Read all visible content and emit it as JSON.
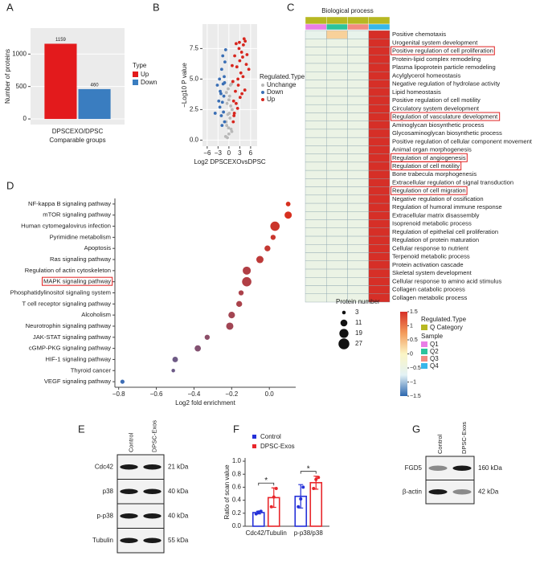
{
  "chart_data": [
    {
      "type": "bar",
      "panel": "A",
      "categories": [
        "DPSCEXO/DPSC"
      ],
      "series": [
        {
          "name": "Up",
          "color": "#e31a1c",
          "values": [
            1159
          ]
        },
        {
          "name": "Down",
          "color": "#3a7dc0",
          "values": [
            460
          ]
        }
      ],
      "x_label": "Comparable groups",
      "y_label": "Number of proteins",
      "legend_title": "Type",
      "ylim": [
        -86,
        1400
      ],
      "yticks": [
        0,
        500,
        1000
      ],
      "grid": true
    },
    {
      "type": "scatter",
      "panel": "B",
      "x_label": "Log2 DPSCEXOvsDPSC",
      "y_label": "−Log10 P value",
      "legend_title": "Regulated.Type",
      "xlim": [
        -7.3,
        7.8
      ],
      "xticks": [
        {
          "value": -6,
          "label": "−6"
        },
        {
          "value": -3,
          "label": "−3"
        },
        0,
        3,
        6
      ],
      "ylim": [
        -0.5,
        9.5
      ],
      "yticks": [
        {
          "value": 0,
          "label": "0.0"
        },
        {
          "value": 2.5,
          "label": "2.5"
        },
        {
          "value": 5,
          "label": "5.0"
        },
        {
          "value": 7.5,
          "label": "7.5"
        }
      ],
      "grid": true,
      "series": [
        {
          "name": "Unchange",
          "color": "#b8b8b8",
          "x": [
            -0.9,
            -0.6,
            -0.3,
            0,
            0.3,
            0.6,
            0.9,
            -0.5,
            -0.2,
            0.2,
            0.5,
            -0.8,
            0.8,
            -0.4,
            0.4,
            0,
            -0.1,
            0.1,
            -0.7,
            0.7
          ],
          "values": [
            0.3,
            1.2,
            2.1,
            0.5,
            1.8,
            0.9,
            2.5,
            3.0,
            4.2,
            3.6,
            2.8,
            1.5,
            0.7,
            0.2,
            4.5,
            3.3,
            1.0,
            2.2,
            3.9,
            4.6
          ]
        },
        {
          "name": "Down",
          "color": "#3a6fb5",
          "x": [
            -1.2,
            -1.5,
            -1.8,
            -2.1,
            -2.4,
            -2.8,
            -1.3,
            -1.6,
            -2.0,
            -2.5,
            -1.1,
            -1.9,
            -3.2,
            -1.4,
            -2.2,
            -0.9,
            -1.7,
            -2.6,
            -1.2,
            -3.8
          ],
          "values": [
            1.5,
            2.3,
            3.1,
            2.0,
            4.0,
            3.2,
            5.2,
            4.6,
            5.8,
            2.7,
            6.4,
            1.2,
            4.5,
            3.6,
            3.8,
            7.4,
            6.9,
            5.0,
            4.7,
            2.2
          ]
        },
        {
          "name": "Up",
          "color": "#d7261e",
          "x": [
            1.2,
            1.5,
            2.0,
            2.5,
            3.0,
            3.5,
            4.0,
            4.5,
            5.0,
            1.8,
            2.2,
            2.8,
            3.3,
            3.8,
            4.2,
            1.3,
            1.6,
            2.6,
            3.6,
            4.8,
            5.5,
            2.4,
            3.1,
            1.1,
            0.9,
            2.0,
            3.9,
            4.4,
            1.4,
            2.9
          ],
          "values": [
            1.5,
            2.2,
            3.0,
            5.0,
            6.5,
            7.2,
            7.8,
            8.1,
            7.0,
            4.0,
            6.0,
            7.5,
            5.5,
            6.8,
            8.3,
            3.2,
            6.9,
            4.5,
            3.8,
            6.2,
            5.8,
            2.6,
            3.5,
            4.8,
            6.1,
            7.9,
            5.2,
            4.1,
            2.0,
            8.0
          ]
        }
      ]
    },
    {
      "type": "heatmap",
      "panel": "C",
      "title": "Biological process",
      "rows": [
        "Positive chemotaxis",
        "Urogenital system development",
        "Positive regulation of cell proliferation",
        "Protein-lipid complex remodeling",
        "Plasma lipoprotein particle remodeling",
        "Acylglycerol homeostasis",
        "Negative regulation of hydrolase activity",
        "Lipid homeostasis",
        "Positive regulation of cell motility",
        "Circulatory system development",
        "Regulation of vasculature development",
        "Aminoglycan biosynthetic process",
        "Glycosaminoglycan biosynthetic process",
        "Positive regulation of cellular component movement",
        "Animal organ morphogenesis",
        "Regulation of angiogenesis",
        "Regulation of cell motility",
        "Bone trabecula morphogenesis",
        "Extracellular regulation of signal transduction",
        "Regulation of cell migration",
        "Negative regulation of ossification",
        "Regulation of humoral immune response",
        "Extracellular matrix disassembly",
        "Isoprenoid metabolic process",
        "Regulation of epithelial cell proliferation",
        "Regulation of protein maturation",
        "Cellular response to nutrient",
        "Terpenoid metabolic process",
        "Protein activation cascade",
        "Skeletal system development",
        "Cellular response to amino acid stimulus",
        "Collagen catabolic process",
        "Collagen metabolic process"
      ],
      "columns": [
        "Q1",
        "Q2",
        "Q3",
        "Q4"
      ],
      "values": [
        [
          -0.6,
          0.3,
          -0.6,
          1.5
        ],
        [
          -0.5,
          -0.5,
          -0.5,
          1.5
        ],
        [
          -0.5,
          -0.5,
          -0.5,
          1.5
        ],
        [
          -0.5,
          -0.5,
          -0.5,
          1.5
        ],
        [
          -0.5,
          -0.5,
          -0.5,
          1.5
        ],
        [
          -0.5,
          -0.5,
          -0.5,
          1.5
        ],
        [
          -0.5,
          -0.5,
          -0.5,
          1.5
        ],
        [
          -0.5,
          -0.5,
          -0.5,
          1.5
        ],
        [
          -0.5,
          -0.5,
          -0.5,
          1.5
        ],
        [
          -0.5,
          -0.5,
          -0.5,
          1.5
        ],
        [
          -0.5,
          -0.5,
          -0.5,
          1.5
        ],
        [
          -0.5,
          -0.5,
          -0.5,
          1.5
        ],
        [
          -0.5,
          -0.5,
          -0.5,
          1.5
        ],
        [
          -0.5,
          -0.5,
          -0.5,
          1.5
        ],
        [
          -0.5,
          -0.5,
          -0.5,
          1.5
        ],
        [
          -0.5,
          -0.5,
          -0.5,
          1.5
        ],
        [
          -0.5,
          -0.5,
          -0.5,
          1.5
        ],
        [
          -0.5,
          -0.5,
          -0.5,
          1.5
        ],
        [
          -0.5,
          -0.5,
          -0.5,
          1.5
        ],
        [
          -0.5,
          -0.5,
          -0.5,
          1.5
        ],
        [
          -0.5,
          -0.5,
          -0.5,
          1.5
        ],
        [
          -0.5,
          -0.5,
          -0.5,
          1.5
        ],
        [
          -0.5,
          -0.5,
          -0.5,
          1.5
        ],
        [
          -0.5,
          -0.5,
          -0.5,
          1.5
        ],
        [
          -0.5,
          -0.5,
          -0.5,
          1.5
        ],
        [
          -0.5,
          -0.5,
          -0.5,
          1.5
        ],
        [
          -0.5,
          -0.5,
          -0.5,
          1.5
        ],
        [
          -0.5,
          -0.5,
          -0.5,
          1.5
        ],
        [
          -0.5,
          -0.5,
          -0.5,
          1.5
        ],
        [
          -0.5,
          -0.5,
          -0.5,
          1.5
        ],
        [
          -0.5,
          -0.5,
          -0.5,
          1.5
        ],
        [
          -0.5,
          -0.5,
          -0.5,
          1.5
        ],
        [
          -0.5,
          -0.5,
          -0.5,
          1.5
        ]
      ],
      "highlighted": [
        2,
        10,
        15,
        16,
        19
      ],
      "category_title": "Regulated.Type",
      "category": "Q Category",
      "category_color": "#b7b822",
      "sample_title": "Sample",
      "sample_colors": [
        "#e97ee6",
        "#2dc39c",
        "#f28b80",
        "#38b7ea"
      ],
      "colorscale": [
        "#2c67ae",
        "#e3f2f5",
        "#fbf5c4",
        "#f39a5a",
        "#d62f27"
      ],
      "clim": [
        -1.5,
        1.5
      ],
      "cticks": [
        1.5,
        1,
        0.5,
        0,
        {
          "value": -0.5,
          "label": "−0.5"
        },
        {
          "value": -1,
          "label": "−1"
        },
        {
          "value": -1.5,
          "label": "−1.5"
        }
      ]
    },
    {
      "type": "bubble",
      "panel": "D",
      "categories": [
        "NF-kappa B signaling pathway",
        "mTOR signaling pathway",
        "Human cytomegalovirus infection",
        "Pyrimidine metabolism",
        "Apoptosis",
        "Ras signaling pathway",
        "Regulation of actin cytoskeleton",
        "MAPK signaling pathway",
        "Phosphatidylinositol signaling system",
        "T cell receptor signaling pathway",
        "Alcoholism",
        "Neurotrophin signaling pathway",
        "JAK-STAT signaling pathway",
        "cGMP-PKG signaling pathway",
        "HIF-1 signaling pathway",
        "Thyroid cancer",
        "VEGF signaling pathway"
      ],
      "values": [
        0.1,
        0.1,
        0.03,
        0.02,
        -0.01,
        -0.05,
        -0.12,
        -0.12,
        -0.15,
        -0.16,
        -0.2,
        -0.21,
        -0.33,
        -0.38,
        -0.5,
        -0.51,
        -0.78
      ],
      "sizes": [
        5,
        12,
        20,
        6,
        8,
        12,
        15,
        20,
        6,
        8,
        10,
        12,
        6,
        9,
        7,
        3,
        4
      ],
      "x_label": "Log2 fold enrichment",
      "xlim": [
        -0.82,
        0.14
      ],
      "xticks": [
        {
          "value": -0.8,
          "label": "−0.8"
        },
        {
          "value": -0.6,
          "label": "−0.6"
        },
        {
          "value": -0.4,
          "label": "−0.4"
        },
        {
          "value": -0.2,
          "label": "−0.2"
        },
        {
          "value": 0,
          "label": "0.0"
        }
      ],
      "highlighted": [
        7
      ],
      "colors": [
        "#3d6db5",
        "#d7301f"
      ],
      "size_legend_title": "Protein number",
      "size_legend": [
        3,
        11,
        19,
        27
      ]
    },
    {
      "type": "bar",
      "panel": "F",
      "categories": [
        "Cdc42/Tubulin",
        "p-p38/p38"
      ],
      "series": [
        {
          "name": "Control",
          "color": "#2430d8",
          "values": [
            0.21,
            0.46
          ],
          "errors": [
            0.02,
            0.18
          ],
          "points": [
            [
              0.19,
              0.22,
              0.23
            ],
            [
              0.3,
              0.42,
              0.6
            ]
          ]
        },
        {
          "name": "DPSC-Exos",
          "color": "#e8262b",
          "values": [
            0.44,
            0.67
          ],
          "errors": [
            0.15,
            0.1
          ],
          "points": [
            [
              0.3,
              0.45,
              0.58
            ],
            [
              0.58,
              0.72,
              0.75
            ]
          ]
        }
      ],
      "y_label": "Ratio of scan value",
      "significance": [
        "*",
        "*"
      ],
      "ylim": [
        0,
        1.05
      ],
      "yticks": [
        {
          "value": 0,
          "label": "0.0"
        },
        {
          "value": 0.2,
          "label": "0.2"
        },
        {
          "value": 0.4,
          "label": "0.4"
        },
        {
          "value": 0.6,
          "label": "0.6"
        },
        {
          "value": 0.8,
          "label": "0.8"
        },
        {
          "value": 1,
          "label": "1.0"
        }
      ]
    }
  ],
  "blots": [
    {
      "panel": "E",
      "columns": [
        "Control",
        "DPSC-Exos"
      ],
      "rows": [
        {
          "protein": "Cdc42",
          "size": "21 kDa"
        },
        {
          "protein": "p38",
          "size": "40 kDa"
        },
        {
          "protein": "p-p38",
          "size": "40 kDa"
        },
        {
          "protein": "Tubulin",
          "size": "55 kDa"
        }
      ]
    },
    {
      "panel": "G",
      "columns": [
        "Control",
        "DPSC-Exos"
      ],
      "rows": [
        {
          "protein": "FGD5",
          "size": "160 kDa"
        },
        {
          "protein": "β-actin",
          "size": "42 kDa"
        }
      ]
    }
  ]
}
